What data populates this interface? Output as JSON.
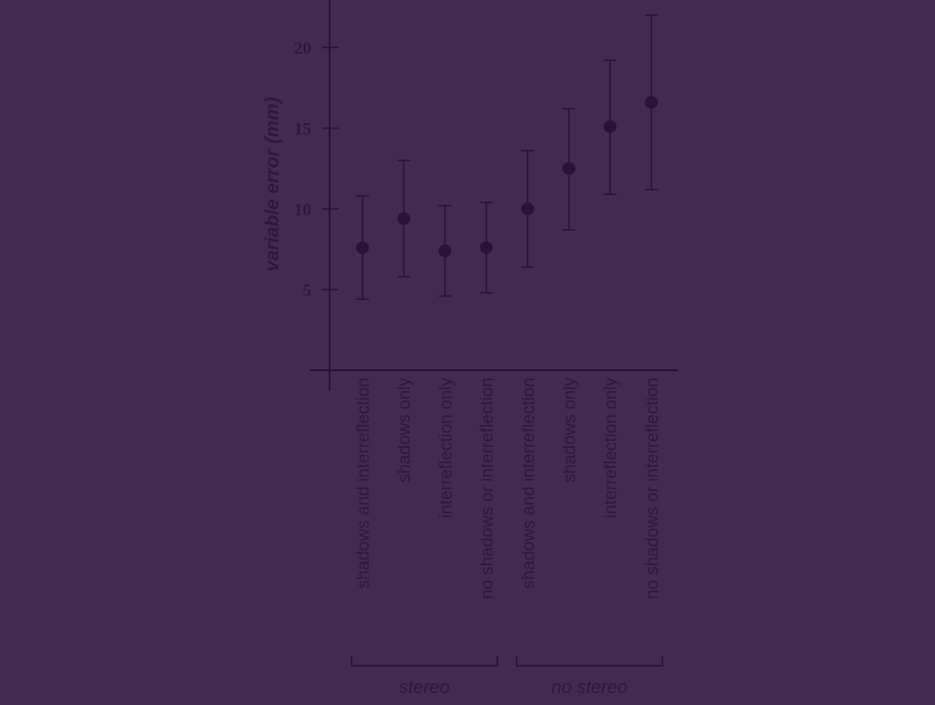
{
  "chart_data": {
    "type": "scatter",
    "error_bars": true,
    "ylabel": "variable error (mm)",
    "xlabel": "",
    "yticks": [
      5,
      10,
      15,
      20
    ],
    "ylim": [
      0,
      23
    ],
    "grid": false,
    "categories": [
      "shadows and interreflection",
      "shadows only",
      "interreflection only",
      "no shadows or interreflection",
      "shadows and interreflection",
      "shadows only",
      "interreflection only",
      "no shadows or interreflection"
    ],
    "values": [
      7.6,
      9.4,
      7.4,
      7.6,
      10.0,
      12.5,
      15.1,
      16.6
    ],
    "error_low": [
      4.4,
      5.8,
      4.6,
      4.8,
      6.4,
      8.7,
      10.9,
      11.2
    ],
    "error_high": [
      10.8,
      13.0,
      10.2,
      10.4,
      13.6,
      16.2,
      19.2,
      22.0
    ],
    "groups": [
      {
        "label": "stereo",
        "range": [
          0,
          3
        ]
      },
      {
        "label": "no stereo",
        "range": [
          4,
          7
        ]
      }
    ],
    "colors": {
      "background": "#442a50",
      "ink": "#2a1238",
      "text": "#2e1a3c"
    }
  }
}
